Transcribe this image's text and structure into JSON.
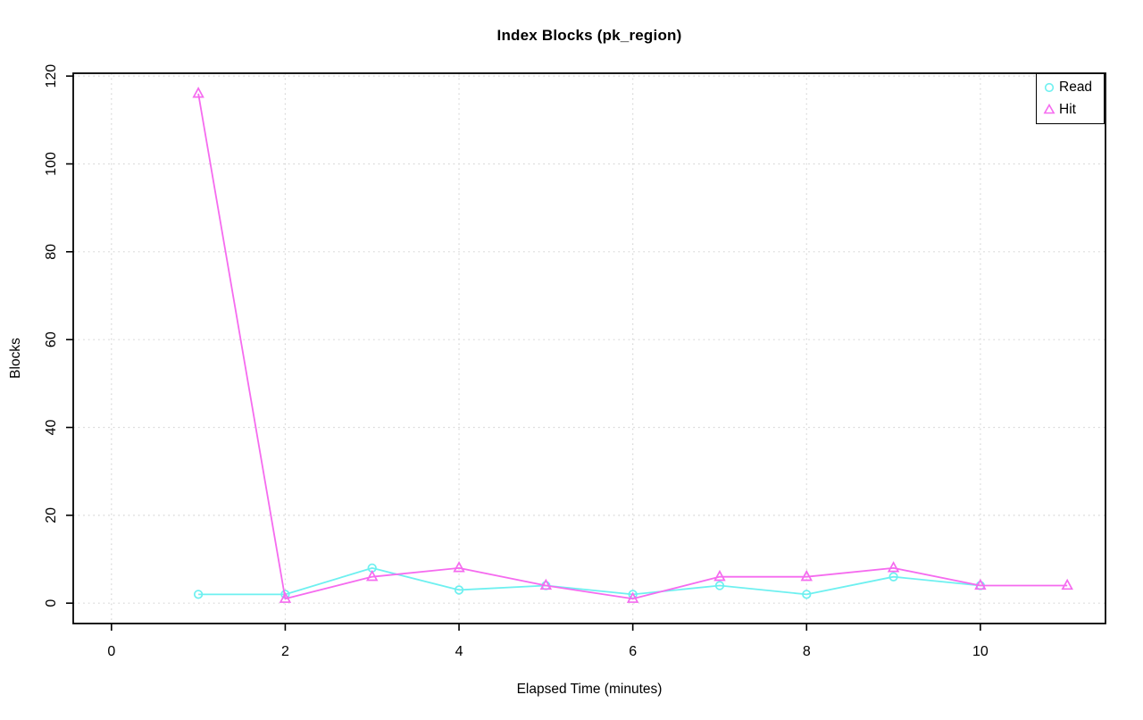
{
  "chart_data": {
    "type": "line",
    "title": "Index Blocks (pk_region)",
    "xlabel": "Elapsed Time (minutes)",
    "ylabel": "Blocks",
    "x_ticks": [
      0,
      2,
      4,
      6,
      8,
      10
    ],
    "y_ticks": [
      0,
      20,
      40,
      60,
      80,
      100,
      120
    ],
    "xlim": [
      -0.44,
      11.44
    ],
    "ylim": [
      -4.64,
      120.64
    ],
    "grid": "dotted",
    "grid_color": "#d6d6d6",
    "axis_color": "#000000",
    "background": "#ffffff",
    "legend_position": "top-right",
    "series": [
      {
        "name": "Read",
        "marker": "circle",
        "color": "#6ef0f0",
        "x": [
          1,
          2,
          3,
          4,
          5,
          6,
          7,
          8,
          9,
          10
        ],
        "values": [
          2,
          2,
          8,
          3,
          4,
          2,
          4,
          2,
          6,
          4
        ]
      },
      {
        "name": "Hit",
        "marker": "triangle",
        "color": "#f56bef",
        "x": [
          1,
          2,
          3,
          4,
          5,
          6,
          7,
          8,
          9,
          10,
          11
        ],
        "values": [
          116,
          1,
          6,
          8,
          4,
          1,
          6,
          6,
          8,
          4,
          4
        ]
      }
    ]
  }
}
